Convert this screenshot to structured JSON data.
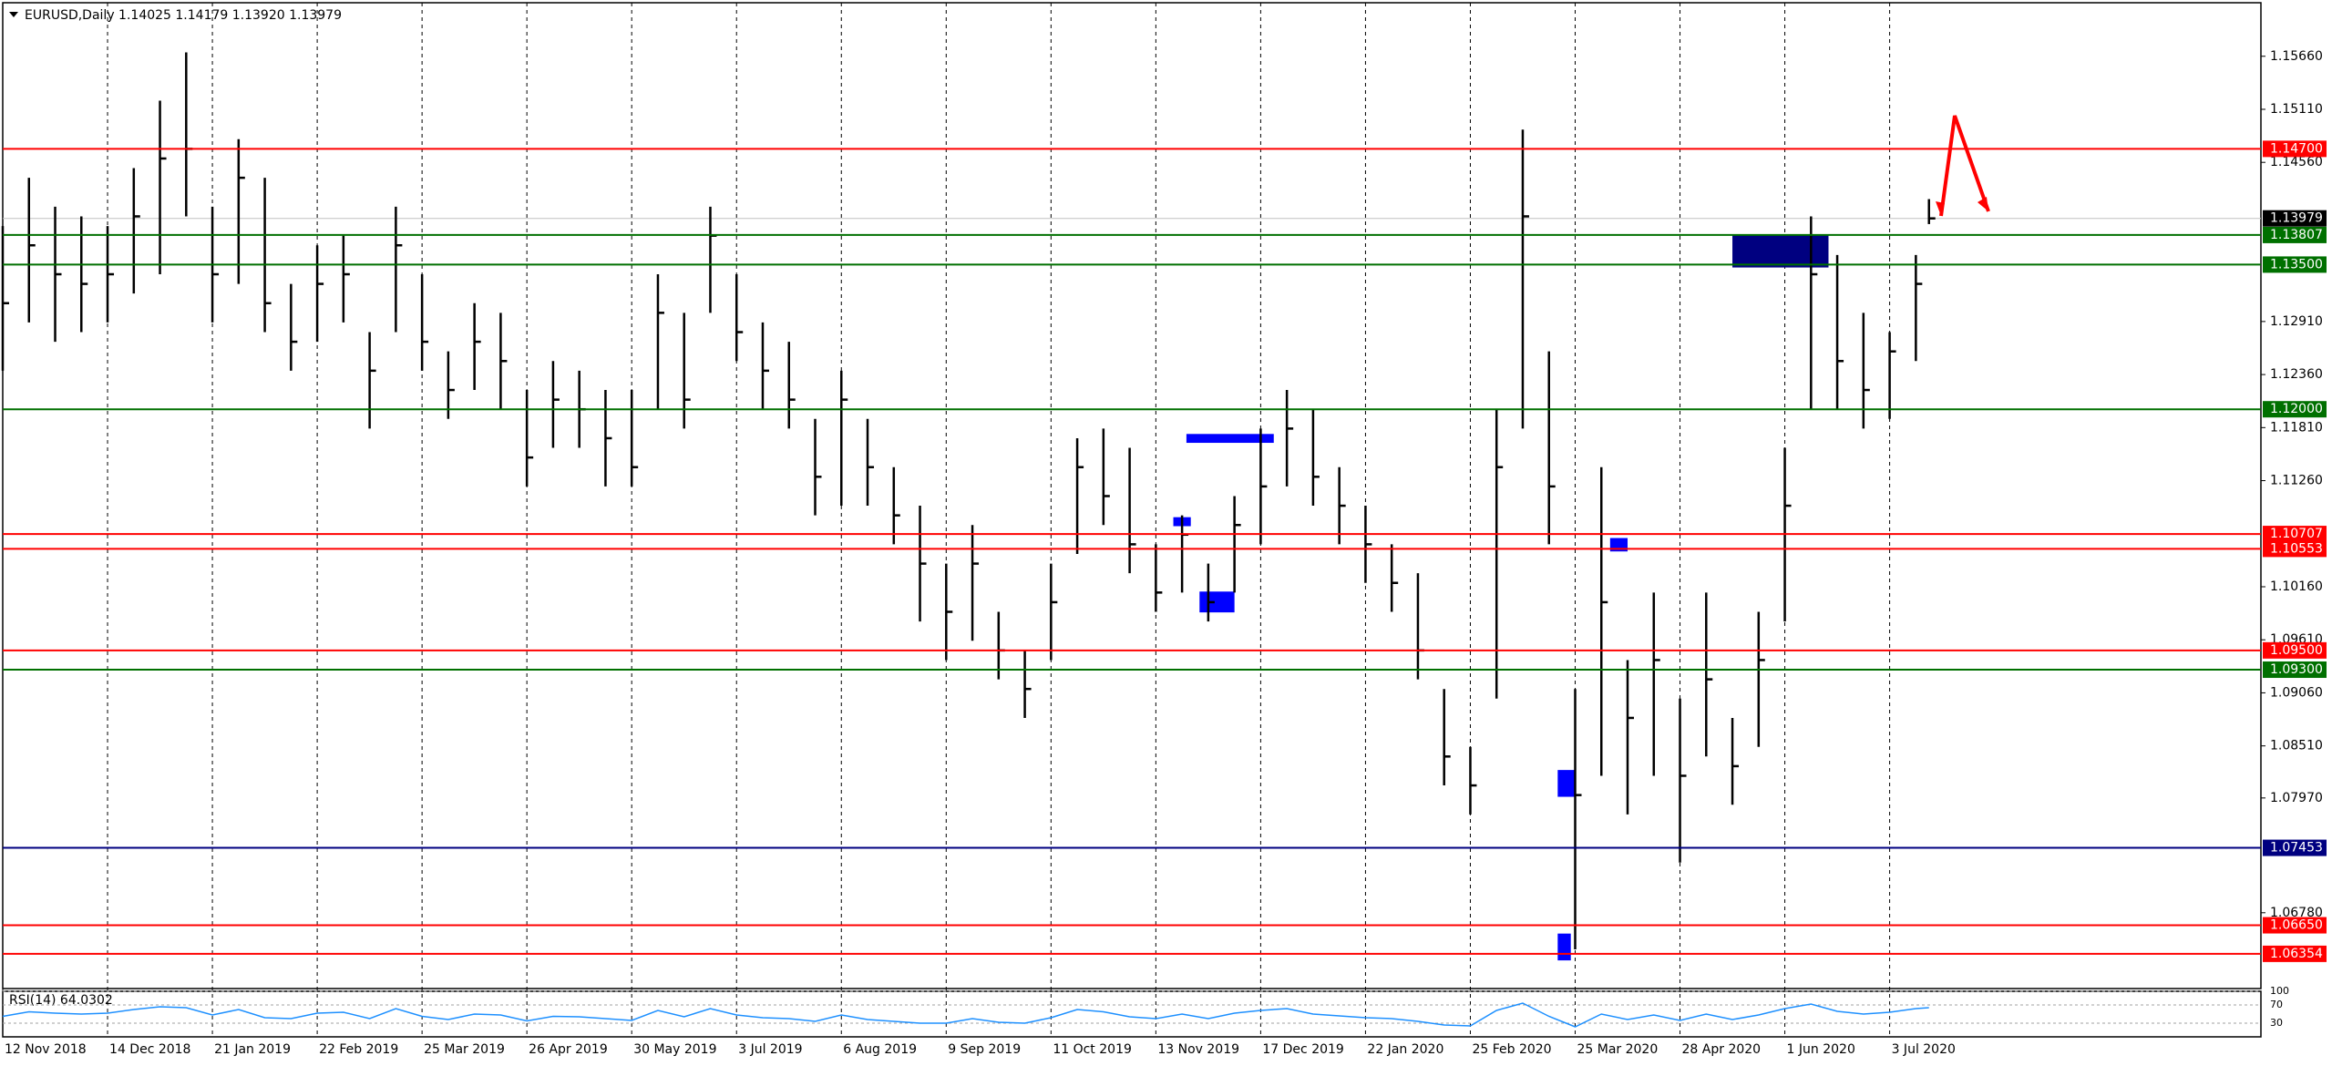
{
  "chart_data": [
    {
      "type": "ohlc",
      "title": "EURUSD,Daily  1.14025 1.14179 1.13920 1.13979",
      "x": [
        0,
        6,
        12,
        18,
        24,
        30,
        36,
        42,
        48,
        54,
        60,
        66,
        72,
        78,
        84,
        90,
        96,
        102,
        108,
        114,
        120,
        126,
        132,
        138,
        144,
        150,
        156,
        162,
        168,
        174,
        180,
        186,
        192,
        198,
        204,
        210,
        216,
        222,
        228,
        234,
        240,
        246,
        252,
        258,
        264,
        270,
        276,
        282,
        288,
        294,
        300,
        306,
        312,
        318,
        324,
        330,
        336,
        342,
        348,
        354,
        360,
        366,
        372,
        378,
        384,
        390,
        396,
        402,
        408,
        414,
        420,
        426,
        432,
        438,
        441
      ],
      "high": [
        1.139,
        1.144,
        1.141,
        1.14,
        1.139,
        1.145,
        1.152,
        1.157,
        1.141,
        1.148,
        1.144,
        1.133,
        1.137,
        1.138,
        1.128,
        1.141,
        1.134,
        1.126,
        1.131,
        1.13,
        1.122,
        1.125,
        1.124,
        1.122,
        1.122,
        1.134,
        1.13,
        1.141,
        1.134,
        1.129,
        1.127,
        1.119,
        1.124,
        1.119,
        1.114,
        1.11,
        1.104,
        1.108,
        1.099,
        1.095,
        1.104,
        1.117,
        1.118,
        1.116,
        1.106,
        1.109,
        1.104,
        1.111,
        1.118,
        1.122,
        1.12,
        1.114,
        1.11,
        1.106,
        1.103,
        1.091,
        1.085,
        1.12,
        1.149,
        1.126,
        1.091,
        1.114,
        1.094,
        1.101,
        1.09,
        1.101,
        1.088,
        1.099,
        1.116,
        1.14,
        1.136,
        1.13,
        1.128,
        1.136,
        1.14179
      ],
      "low": [
        1.124,
        1.129,
        1.127,
        1.128,
        1.129,
        1.132,
        1.134,
        1.14,
        1.129,
        1.133,
        1.128,
        1.124,
        1.127,
        1.129,
        1.118,
        1.128,
        1.124,
        1.119,
        1.122,
        1.12,
        1.112,
        1.116,
        1.116,
        1.112,
        1.112,
        1.12,
        1.118,
        1.13,
        1.125,
        1.12,
        1.118,
        1.109,
        1.11,
        1.11,
        1.106,
        1.098,
        1.094,
        1.096,
        1.092,
        1.088,
        1.094,
        1.105,
        1.108,
        1.103,
        1.099,
        1.101,
        1.098,
        1.101,
        1.106,
        1.112,
        1.11,
        1.106,
        1.102,
        1.099,
        1.092,
        1.081,
        1.078,
        1.09,
        1.118,
        1.106,
        1.064,
        1.082,
        1.078,
        1.082,
        1.073,
        1.084,
        1.079,
        1.085,
        1.098,
        1.12,
        1.12,
        1.118,
        1.119,
        1.125,
        1.1392
      ],
      "close": [
        1.131,
        1.137,
        1.134,
        1.133,
        1.134,
        1.14,
        1.146,
        1.147,
        1.134,
        1.144,
        1.131,
        1.127,
        1.133,
        1.134,
        1.124,
        1.137,
        1.127,
        1.122,
        1.127,
        1.125,
        1.115,
        1.121,
        1.12,
        1.117,
        1.114,
        1.13,
        1.121,
        1.138,
        1.128,
        1.124,
        1.121,
        1.113,
        1.121,
        1.114,
        1.109,
        1.104,
        1.099,
        1.104,
        1.095,
        1.091,
        1.1,
        1.114,
        1.111,
        1.106,
        1.101,
        1.107,
        1.1,
        1.108,
        1.112,
        1.118,
        1.113,
        1.11,
        1.106,
        1.102,
        1.095,
        1.084,
        1.081,
        1.114,
        1.14,
        1.112,
        1.08,
        1.1,
        1.088,
        1.094,
        1.082,
        1.092,
        1.083,
        1.094,
        1.11,
        1.134,
        1.125,
        1.122,
        1.126,
        1.133,
        1.13979
      ],
      "color": "#000000",
      "xlim": [
        0,
        517
      ],
      "xticks": [
        {
          "value": 0,
          "label": "12 Nov 2018"
        },
        {
          "value": 24,
          "label": "14 Dec 2018"
        },
        {
          "value": 48,
          "label": "21 Jan 2019"
        },
        {
          "value": 72,
          "label": "22 Feb 2019"
        },
        {
          "value": 96,
          "label": "25 Mar 2019"
        },
        {
          "value": 120,
          "label": "26 Apr 2019"
        },
        {
          "value": 144,
          "label": "30 May 2019"
        },
        {
          "value": 168,
          "label": "3 Jul 2019"
        },
        {
          "value": 192,
          "label": "6 Aug 2019"
        },
        {
          "value": 216,
          "label": "9 Sep 2019"
        },
        {
          "value": 240,
          "label": "11 Oct 2019"
        },
        {
          "value": 264,
          "label": "13 Nov 2019"
        },
        {
          "value": 288,
          "label": "17 Dec 2019"
        },
        {
          "value": 312,
          "label": "22 Jan 2020"
        },
        {
          "value": 336,
          "label": "25 Feb 2020"
        },
        {
          "value": 360,
          "label": "25 Mar 2020"
        },
        {
          "value": 384,
          "label": "28 Apr 2020"
        },
        {
          "value": 408,
          "label": "1 Jun 2020"
        },
        {
          "value": 432,
          "label": "3 Jul 2020"
        }
      ],
      "ylim": [
        1.05994,
        1.16215
      ],
      "yticks": [
        {
          "value": 1.1566,
          "label": "1.15660"
        },
        {
          "value": 1.1511,
          "label": "1.15110"
        },
        {
          "value": 1.1456,
          "label": "1.14560"
        },
        {
          "value": 1.1291,
          "label": "1.12910"
        },
        {
          "value": 1.1236,
          "label": "1.12360"
        },
        {
          "value": 1.1181,
          "label": "1.11810"
        },
        {
          "value": 1.1126,
          "label": "1.11260"
        },
        {
          "value": 1.1016,
          "label": "1.10160"
        },
        {
          "value": 1.0961,
          "label": "1.09610"
        },
        {
          "value": 1.0906,
          "label": "1.09060"
        },
        {
          "value": 1.0851,
          "label": "1.08510"
        },
        {
          "value": 1.0797,
          "label": "1.07970"
        },
        {
          "value": 1.0678,
          "label": "1.06780"
        }
      ],
      "vgrid": true,
      "levels": [
        {
          "value": 1.147,
          "label": "1.14700",
          "color": "#ff0000"
        },
        {
          "value": 1.13807,
          "label": "1.13807",
          "color": "#007000"
        },
        {
          "value": 1.135,
          "label": "1.13500",
          "color": "#007000"
        },
        {
          "value": 1.12,
          "label": "1.12000",
          "color": "#007000"
        },
        {
          "value": 1.10707,
          "label": "1.10707",
          "color": "#ff0000"
        },
        {
          "value": 1.10553,
          "label": "1.10553",
          "color": "#ff0000"
        },
        {
          "value": 1.095,
          "label": "1.09500",
          "color": "#ff0000"
        },
        {
          "value": 1.093,
          "label": "1.09300",
          "color": "#007000"
        },
        {
          "value": 1.07453,
          "label": "1.07453",
          "color": "#000080"
        },
        {
          "value": 1.0665,
          "label": "1.06650",
          "color": "#ff0000"
        },
        {
          "value": 1.06354,
          "label": "1.06354",
          "color": "#ff0000"
        }
      ],
      "last": {
        "value": 1.13979,
        "label": "1.13979"
      },
      "zones": [
        {
          "x": [
            396,
            418
          ],
          "y": [
            1.1347,
            1.1381
          ],
          "color": "#000080"
        },
        {
          "x": [
            271,
            291
          ],
          "y": [
            1.11652,
            1.11744
          ],
          "color": "#0000ff"
        },
        {
          "x": [
            268,
            272
          ],
          "y": [
            1.10788,
            1.10881
          ],
          "color": "#0000ff"
        },
        {
          "x": [
            274,
            282
          ],
          "y": [
            1.09894,
            1.1011
          ],
          "color": "#0000ff"
        },
        {
          "x": [
            368,
            372
          ],
          "y": [
            1.10526,
            1.10665
          ],
          "color": "#0000ff"
        },
        {
          "x": [
            356,
            360
          ],
          "y": [
            1.07982,
            1.0826
          ],
          "color": "#0000ff"
        },
        {
          "x": [
            356,
            359
          ],
          "y": [
            1.06286,
            1.06564
          ],
          "color": "#0000ff"
        }
      ]
    },
    {
      "type": "line",
      "title": "RSI(14) 64.0302",
      "x": [
        0,
        6,
        12,
        18,
        24,
        30,
        36,
        42,
        48,
        54,
        60,
        66,
        72,
        78,
        84,
        90,
        96,
        102,
        108,
        114,
        120,
        126,
        132,
        138,
        144,
        150,
        156,
        162,
        168,
        174,
        180,
        186,
        192,
        198,
        204,
        210,
        216,
        222,
        228,
        234,
        240,
        246,
        252,
        258,
        264,
        270,
        276,
        282,
        288,
        294,
        300,
        306,
        312,
        318,
        324,
        330,
        336,
        342,
        348,
        354,
        360,
        366,
        372,
        378,
        384,
        390,
        396,
        402,
        408,
        414,
        420,
        426,
        432,
        438,
        441
      ],
      "values": [
        45,
        55,
        52,
        50,
        52,
        60,
        66,
        64,
        48,
        60,
        42,
        40,
        52,
        54,
        40,
        62,
        45,
        38,
        50,
        48,
        35,
        45,
        44,
        40,
        36,
        58,
        44,
        62,
        48,
        42,
        40,
        34,
        48,
        38,
        34,
        30,
        30,
        40,
        32,
        30,
        42,
        60,
        55,
        44,
        40,
        50,
        40,
        52,
        58,
        62,
        50,
        46,
        42,
        40,
        34,
        26,
        24,
        58,
        74,
        45,
        22,
        50,
        38,
        48,
        36,
        50,
        38,
        48,
        62,
        72,
        56,
        50,
        54,
        62,
        64.0302
      ],
      "color": "#1e90ff",
      "xlim": [
        0,
        517
      ],
      "ylim": [
        0,
        100
      ],
      "yticks": [
        100,
        70,
        30
      ]
    }
  ]
}
